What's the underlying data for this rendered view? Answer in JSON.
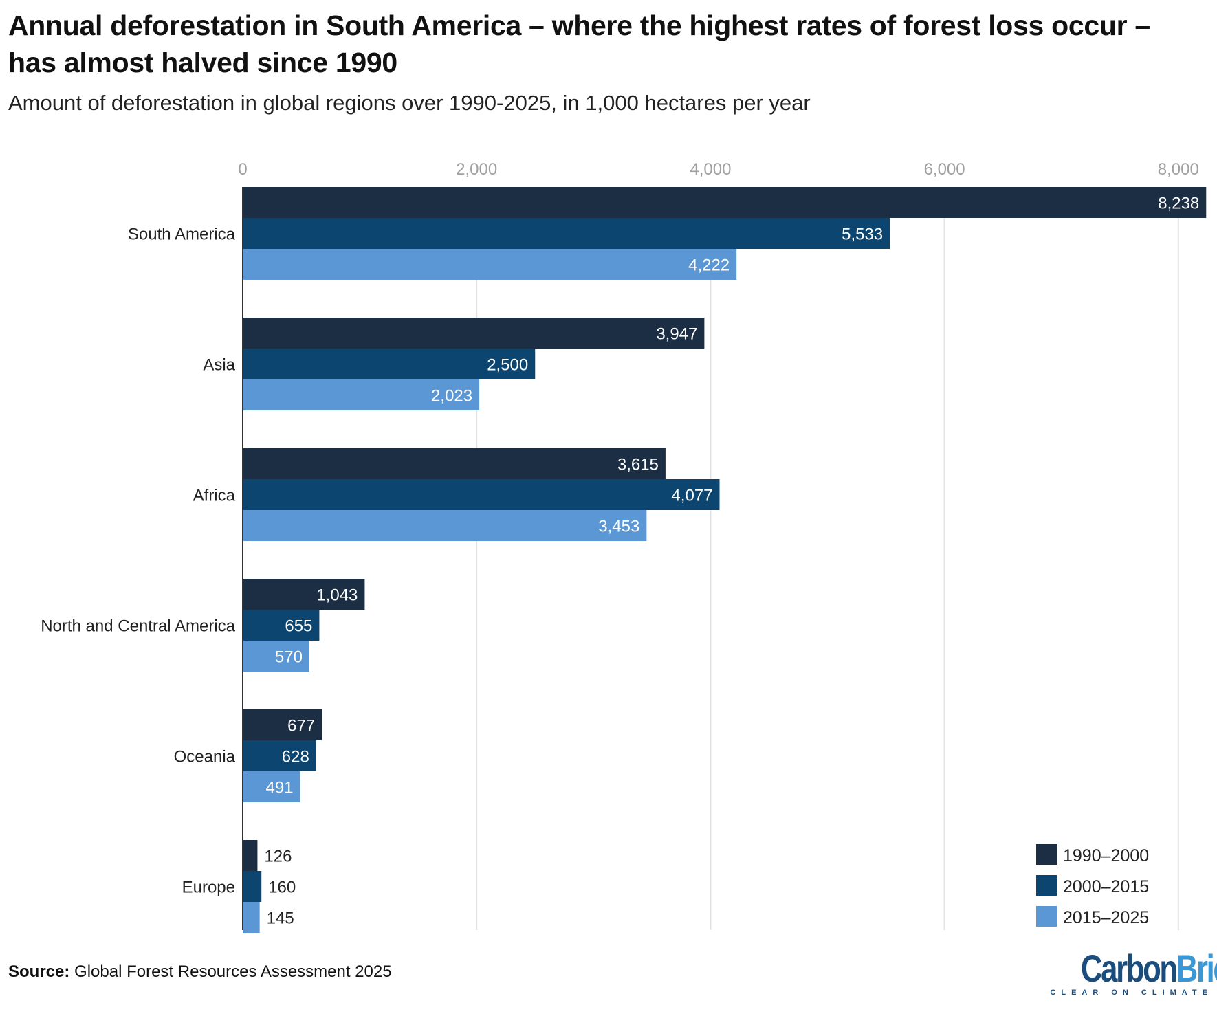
{
  "title": "Annual deforestation in South America – where the highest rates of forest loss occur – has almost halved since 1990",
  "subtitle": "Amount of deforestation in global regions over 1990-2025, in 1,000 hectares per year",
  "source_label": "Source:",
  "source_text": "Global Forest Resources Assessment 2025",
  "logo": {
    "part1": "Carbon",
    "part2": "Brief",
    "tagline": "CLEAR ON CLIMATE"
  },
  "chart_data": {
    "type": "bar",
    "orientation": "horizontal",
    "categories": [
      "South America",
      "Asia",
      "Africa",
      "North and Central America",
      "Oceania",
      "Europe"
    ],
    "series": [
      {
        "name": "1990–2000",
        "color": "#1b2e44",
        "values": [
          8238,
          3947,
          3615,
          1043,
          677,
          126
        ]
      },
      {
        "name": "2000–2015",
        "color": "#0b4570",
        "values": [
          5533,
          2500,
          4077,
          655,
          628,
          160
        ]
      },
      {
        "name": "2015–2025",
        "color": "#5b97d4",
        "values": [
          4222,
          2023,
          3453,
          570,
          491,
          145
        ]
      }
    ],
    "xlim": [
      0,
      8238
    ],
    "xticks": [
      0,
      2000,
      4000,
      6000,
      8000
    ],
    "xtick_labels": [
      "0",
      "2,000",
      "4,000",
      "6,000",
      "8,000"
    ],
    "grid": true,
    "legend_position": "bottom-right",
    "data_labels": true
  }
}
